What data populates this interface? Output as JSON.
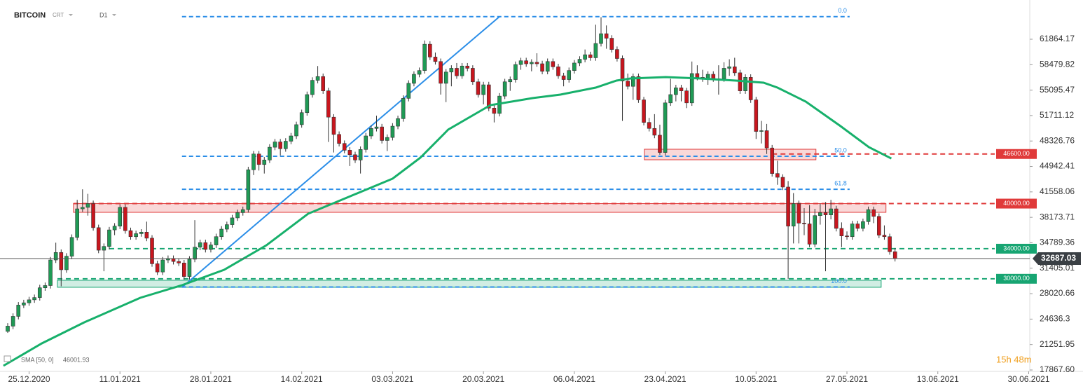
{
  "chart_data": {
    "type": "candlestick",
    "title": "BITCOIN",
    "instrument_type": "CRT",
    "timeframe": "D1",
    "countdown": "15h 48m",
    "up_color": "#1f9a55",
    "down_color": "#c8161e",
    "xlim": [
      -1.44,
      191.2
    ],
    "ylim": [
      17680,
      67084
    ],
    "xticks": [
      {
        "value": 4,
        "label": "25.12.2020"
      },
      {
        "value": 21,
        "label": "11.01.2021"
      },
      {
        "value": 38,
        "label": "28.01.2021"
      },
      {
        "value": 55,
        "label": "14.02.2021"
      },
      {
        "value": 72,
        "label": "03.03.2021"
      },
      {
        "value": 89,
        "label": "20.03.2021"
      },
      {
        "value": 106,
        "label": "06.04.2021"
      },
      {
        "value": 123,
        "label": "23.04.2021"
      },
      {
        "value": 140,
        "label": "10.05.2021"
      },
      {
        "value": 157,
        "label": "27.05.2021"
      },
      {
        "value": 174,
        "label": "13.06.2021"
      },
      {
        "value": 191,
        "label": "30.06.2021"
      }
    ],
    "yticks": [
      {
        "value": 17867.6,
        "label": "17867.60"
      },
      21251.95,
      24636.3,
      28020.66,
      31405.01,
      34789.36,
      38173.71,
      41558.06,
      44942.41,
      48326.76,
      51711.12,
      55095.47,
      58479.82,
      61864.17
    ],
    "candles": [
      [
        23000,
        24100,
        22800,
        23700
      ],
      [
        23700,
        25400,
        23300,
        25000
      ],
      [
        25000,
        26900,
        24600,
        26500
      ],
      [
        26500,
        27200,
        26100,
        26800
      ],
      [
        26800,
        27600,
        26400,
        27200
      ],
      [
        27200,
        27900,
        26800,
        27500
      ],
      [
        27500,
        29200,
        27100,
        28800
      ],
      [
        28800,
        29500,
        28400,
        29100
      ],
      [
        29100,
        32900,
        28700,
        32500
      ],
      [
        32500,
        34800,
        32100,
        33500
      ],
      [
        33500,
        33900,
        29000,
        31200
      ],
      [
        31200,
        33400,
        30800,
        33000
      ],
      [
        33000,
        35900,
        32600,
        35500
      ],
      [
        35500,
        40500,
        35100,
        39300
      ],
      [
        39300,
        41900,
        38900,
        39500
      ],
      [
        39500,
        41300,
        38400,
        40000
      ],
      [
        40000,
        40400,
        36400,
        36800
      ],
      [
        36800,
        37200,
        33400,
        33800
      ],
      [
        33800,
        34700,
        31000,
        34300
      ],
      [
        34300,
        36900,
        33900,
        36500
      ],
      [
        36500,
        37400,
        35800,
        37000
      ],
      [
        37000,
        39900,
        36600,
        39500
      ],
      [
        39500,
        39900,
        36000,
        36400
      ],
      [
        36400,
        36800,
        35200,
        35600
      ],
      [
        35600,
        36400,
        35200,
        36000
      ],
      [
        36000,
        36600,
        35600,
        36200
      ],
      [
        36200,
        37600,
        35000,
        35400
      ],
      [
        35400,
        35800,
        31600,
        32000
      ],
      [
        32000,
        32400,
        30500,
        30900
      ],
      [
        30900,
        32900,
        30500,
        32500
      ],
      [
        32500,
        33100,
        32100,
        32700
      ],
      [
        32700,
        33100,
        31900,
        32300
      ],
      [
        32300,
        32700,
        31700,
        32100
      ],
      [
        32100,
        32500,
        29900,
        30300
      ],
      [
        30300,
        33000,
        29900,
        32600
      ],
      [
        32600,
        37800,
        32200,
        34200
      ],
      [
        34200,
        35200,
        33800,
        34800
      ],
      [
        34800,
        35200,
        33500,
        33900
      ],
      [
        33900,
        34900,
        33500,
        34500
      ],
      [
        34500,
        36000,
        34100,
        35600
      ],
      [
        35600,
        37000,
        35200,
        36600
      ],
      [
        36600,
        37600,
        36200,
        37200
      ],
      [
        37200,
        38500,
        36800,
        38100
      ],
      [
        38100,
        39200,
        37700,
        38800
      ],
      [
        38800,
        39600,
        38400,
        39200
      ],
      [
        39200,
        44900,
        38800,
        44500
      ],
      [
        44500,
        47000,
        43800,
        46600
      ],
      [
        46600,
        47000,
        44400,
        45200
      ],
      [
        45200,
        46200,
        44000,
        45800
      ],
      [
        45800,
        47900,
        45400,
        47500
      ],
      [
        47500,
        48600,
        47100,
        48200
      ],
      [
        48200,
        48600,
        46400,
        47300
      ],
      [
        47300,
        48700,
        46900,
        48300
      ],
      [
        48300,
        49400,
        47900,
        49000
      ],
      [
        49000,
        50900,
        48600,
        50500
      ],
      [
        50500,
        52500,
        50100,
        52100
      ],
      [
        52100,
        54900,
        51700,
        54500
      ],
      [
        54500,
        56800,
        54100,
        56400
      ],
      [
        56400,
        58300,
        56000,
        56900
      ],
      [
        56900,
        57300,
        54600,
        55000
      ],
      [
        55000,
        55400,
        48200,
        51500
      ],
      [
        51500,
        51900,
        46800,
        49200
      ],
      [
        49200,
        49600,
        47600,
        48000
      ],
      [
        48000,
        48400,
        46700,
        47100
      ],
      [
        47100,
        47500,
        45000,
        46500
      ],
      [
        46500,
        46900,
        45400,
        45800
      ],
      [
        45800,
        47600,
        44000,
        47200
      ],
      [
        47200,
        49400,
        46800,
        49000
      ],
      [
        49000,
        50400,
        48600,
        50000
      ],
      [
        50000,
        51700,
        49600,
        50200
      ],
      [
        50200,
        50600,
        48000,
        48400
      ],
      [
        48400,
        49200,
        47000,
        48800
      ],
      [
        48800,
        50700,
        48400,
        50300
      ],
      [
        50300,
        51700,
        49900,
        51300
      ],
      [
        51300,
        54400,
        50900,
        54000
      ],
      [
        54000,
        56400,
        53600,
        56000
      ],
      [
        56000,
        57600,
        55600,
        57200
      ],
      [
        57200,
        58100,
        56800,
        57700
      ],
      [
        57700,
        61700,
        57300,
        61200
      ],
      [
        61200,
        61600,
        59100,
        59500
      ],
      [
        59500,
        60100,
        58500,
        58900
      ],
      [
        58900,
        59300,
        54500,
        56000
      ],
      [
        56000,
        57900,
        53500,
        57500
      ],
      [
        57500,
        58400,
        55600,
        58000
      ],
      [
        58000,
        58700,
        56600,
        57000
      ],
      [
        57000,
        58700,
        56600,
        58300
      ],
      [
        58300,
        58700,
        57600,
        58000
      ],
      [
        58000,
        58400,
        55800,
        56200
      ],
      [
        56200,
        56600,
        54100,
        54500
      ],
      [
        54500,
        56200,
        53200,
        55800
      ],
      [
        55800,
        56200,
        52300,
        52700
      ],
      [
        52700,
        53100,
        50800,
        52000
      ],
      [
        52000,
        54700,
        51600,
        54300
      ],
      [
        54300,
        56600,
        53900,
        56200
      ],
      [
        56200,
        56900,
        55000,
        56500
      ],
      [
        56500,
        58900,
        56100,
        58500
      ],
      [
        58500,
        59400,
        57800,
        59000
      ],
      [
        59000,
        59400,
        58200,
        58600
      ],
      [
        58600,
        59200,
        57600,
        58800
      ],
      [
        58800,
        60000,
        58200,
        58600
      ],
      [
        58600,
        59000,
        57200,
        57600
      ],
      [
        57600,
        59300,
        57200,
        58900
      ],
      [
        58900,
        59300,
        57800,
        58200
      ],
      [
        58200,
        58600,
        56600,
        57000
      ],
      [
        57000,
        57400,
        55600,
        56500
      ],
      [
        56500,
        58100,
        56100,
        57700
      ],
      [
        57700,
        59100,
        57300,
        58700
      ],
      [
        58700,
        59600,
        58300,
        59200
      ],
      [
        59200,
        60500,
        58800,
        59800
      ],
      [
        59800,
        60200,
        59000,
        59400
      ],
      [
        59400,
        63800,
        59000,
        61300
      ],
      [
        61300,
        64800,
        60900,
        62600
      ],
      [
        62600,
        63700,
        60600,
        62000
      ],
      [
        62000,
        62400,
        60100,
        60500
      ],
      [
        60500,
        60900,
        58900,
        59300
      ],
      [
        59300,
        59700,
        51000,
        56300
      ],
      [
        56300,
        57300,
        55200,
        55600
      ],
      [
        55600,
        57300,
        53800,
        56900
      ],
      [
        56900,
        57300,
        53400,
        53800
      ],
      [
        53800,
        54200,
        50400,
        50800
      ],
      [
        50800,
        51400,
        49600,
        50000
      ],
      [
        50000,
        51900,
        48700,
        49100
      ],
      [
        49100,
        50500,
        46500,
        46800
      ],
      [
        46800,
        53800,
        46400,
        53400
      ],
      [
        53400,
        56600,
        53000,
        54500
      ],
      [
        54500,
        55800,
        53600,
        55400
      ],
      [
        55400,
        55800,
        53600,
        55000
      ],
      [
        55000,
        55400,
        52700,
        53400
      ],
      [
        53400,
        58900,
        53000,
        57300
      ],
      [
        57300,
        58400,
        56400,
        56800
      ],
      [
        56800,
        57800,
        56200,
        56600
      ],
      [
        56600,
        57600,
        55800,
        57200
      ],
      [
        57200,
        57600,
        56200,
        56600
      ],
      [
        56600,
        58400,
        54500,
        56600
      ],
      [
        56600,
        58800,
        56200,
        58000
      ],
      [
        58000,
        59200,
        57000,
        58200
      ],
      [
        58200,
        59400,
        57000,
        57400
      ],
      [
        57400,
        57800,
        54600,
        55000
      ],
      [
        55000,
        57200,
        54600,
        56800
      ],
      [
        56800,
        57200,
        53400,
        53800
      ],
      [
        53800,
        54200,
        48600,
        49600
      ],
      [
        49600,
        51000,
        48000,
        49700
      ],
      [
        49700,
        50600,
        46600,
        47400
      ],
      [
        47400,
        47800,
        43600,
        44000
      ],
      [
        44000,
        45700,
        42500,
        43500
      ],
      [
        43500,
        43900,
        41800,
        42200
      ],
      [
        42200,
        43000,
        30000,
        37000
      ],
      [
        37000,
        41400,
        34700,
        40000
      ],
      [
        40000,
        40400,
        34700,
        37400
      ],
      [
        37400,
        39400,
        35800,
        37300
      ],
      [
        37300,
        39800,
        34200,
        34600
      ],
      [
        34600,
        39300,
        34200,
        38400
      ],
      [
        38400,
        40000,
        37200,
        38800
      ],
      [
        38800,
        40200,
        31000,
        38500
      ],
      [
        38500,
        40500,
        37900,
        39300
      ],
      [
        39300,
        39700,
        36300,
        36700
      ],
      [
        36700,
        37500,
        34200,
        35700
      ],
      [
        35700,
        36300,
        35200,
        35600
      ],
      [
        35600,
        37700,
        35200,
        37300
      ],
      [
        37300,
        37700,
        36300,
        36700
      ],
      [
        36700,
        38000,
        36300,
        37600
      ],
      [
        37600,
        39600,
        37200,
        39200
      ],
      [
        39200,
        39600,
        37400,
        38300
      ],
      [
        38300,
        38700,
        35400,
        35800
      ],
      [
        35800,
        37100,
        35200,
        35600
      ],
      [
        35600,
        36000,
        33200,
        33600
      ],
      [
        33600,
        34100,
        32300,
        32687.03
      ]
    ],
    "last_price": 32687.03,
    "levels": [
      {
        "value": 46600,
        "label": "46600.00",
        "color": "#e03a3a",
        "x_start": 143
      },
      {
        "value": 40000,
        "label": "40000.00",
        "color": "#e03a3a",
        "x_start": 12.3
      },
      {
        "value": 34000,
        "label": "34000.00",
        "color": "#17a572",
        "x_start": 19
      },
      {
        "value": 30000,
        "label": "30000.00",
        "color": "#17a572",
        "x_start": 9.3
      }
    ],
    "zones": [
      {
        "x": [
          12.3,
          164.3
        ],
        "y": [
          38840,
          40000
        ],
        "color": "#e03a3a"
      },
      {
        "x": [
          119.1,
          151.2
        ],
        "y": [
          45830,
          47230
        ],
        "color": "#e03a3a"
      },
      {
        "x": [
          9.3,
          163.4
        ],
        "y": [
          28870,
          29800
        ],
        "color": "#17a572"
      }
    ],
    "fibonacci": {
      "color": "#2b8ee8",
      "x": [
        32.6,
        157.5
      ],
      "levels": [
        {
          "value": 64870,
          "label": "0.0"
        },
        {
          "value": 46300,
          "label": "50.0"
        },
        {
          "value": 41900,
          "label": "61.8"
        },
        {
          "value": 28900,
          "label": "100.0"
        }
      ]
    },
    "trendline": {
      "color": "#2b8ee8",
      "x": [
        32.6,
        92
      ],
      "values": [
        28868,
        64870
      ]
    },
    "sma": {
      "name": "SMA [50, 0]",
      "value_label": "46001.93",
      "color": "#17b06b",
      "x": [
        -0.8,
        6.4,
        14.3,
        24.8,
        32.6,
        40.5,
        48.4,
        56.2,
        64.1,
        72,
        77.2,
        82.4,
        90.3,
        98.2,
        103.4,
        110,
        113.9,
        116.5,
        123.1,
        129.6,
        136.2,
        141.4,
        144,
        149.3,
        155.8,
        161.1,
        165.3
      ],
      "values": [
        18430,
        21410,
        24200,
        27470,
        29150,
        31200,
        34460,
        38655,
        40985,
        43315,
        46110,
        49840,
        53100,
        54035,
        54500,
        55430,
        56365,
        56645,
        56830,
        56645,
        56365,
        56085,
        55430,
        53570,
        50305,
        47510,
        46001.93
      ]
    }
  }
}
